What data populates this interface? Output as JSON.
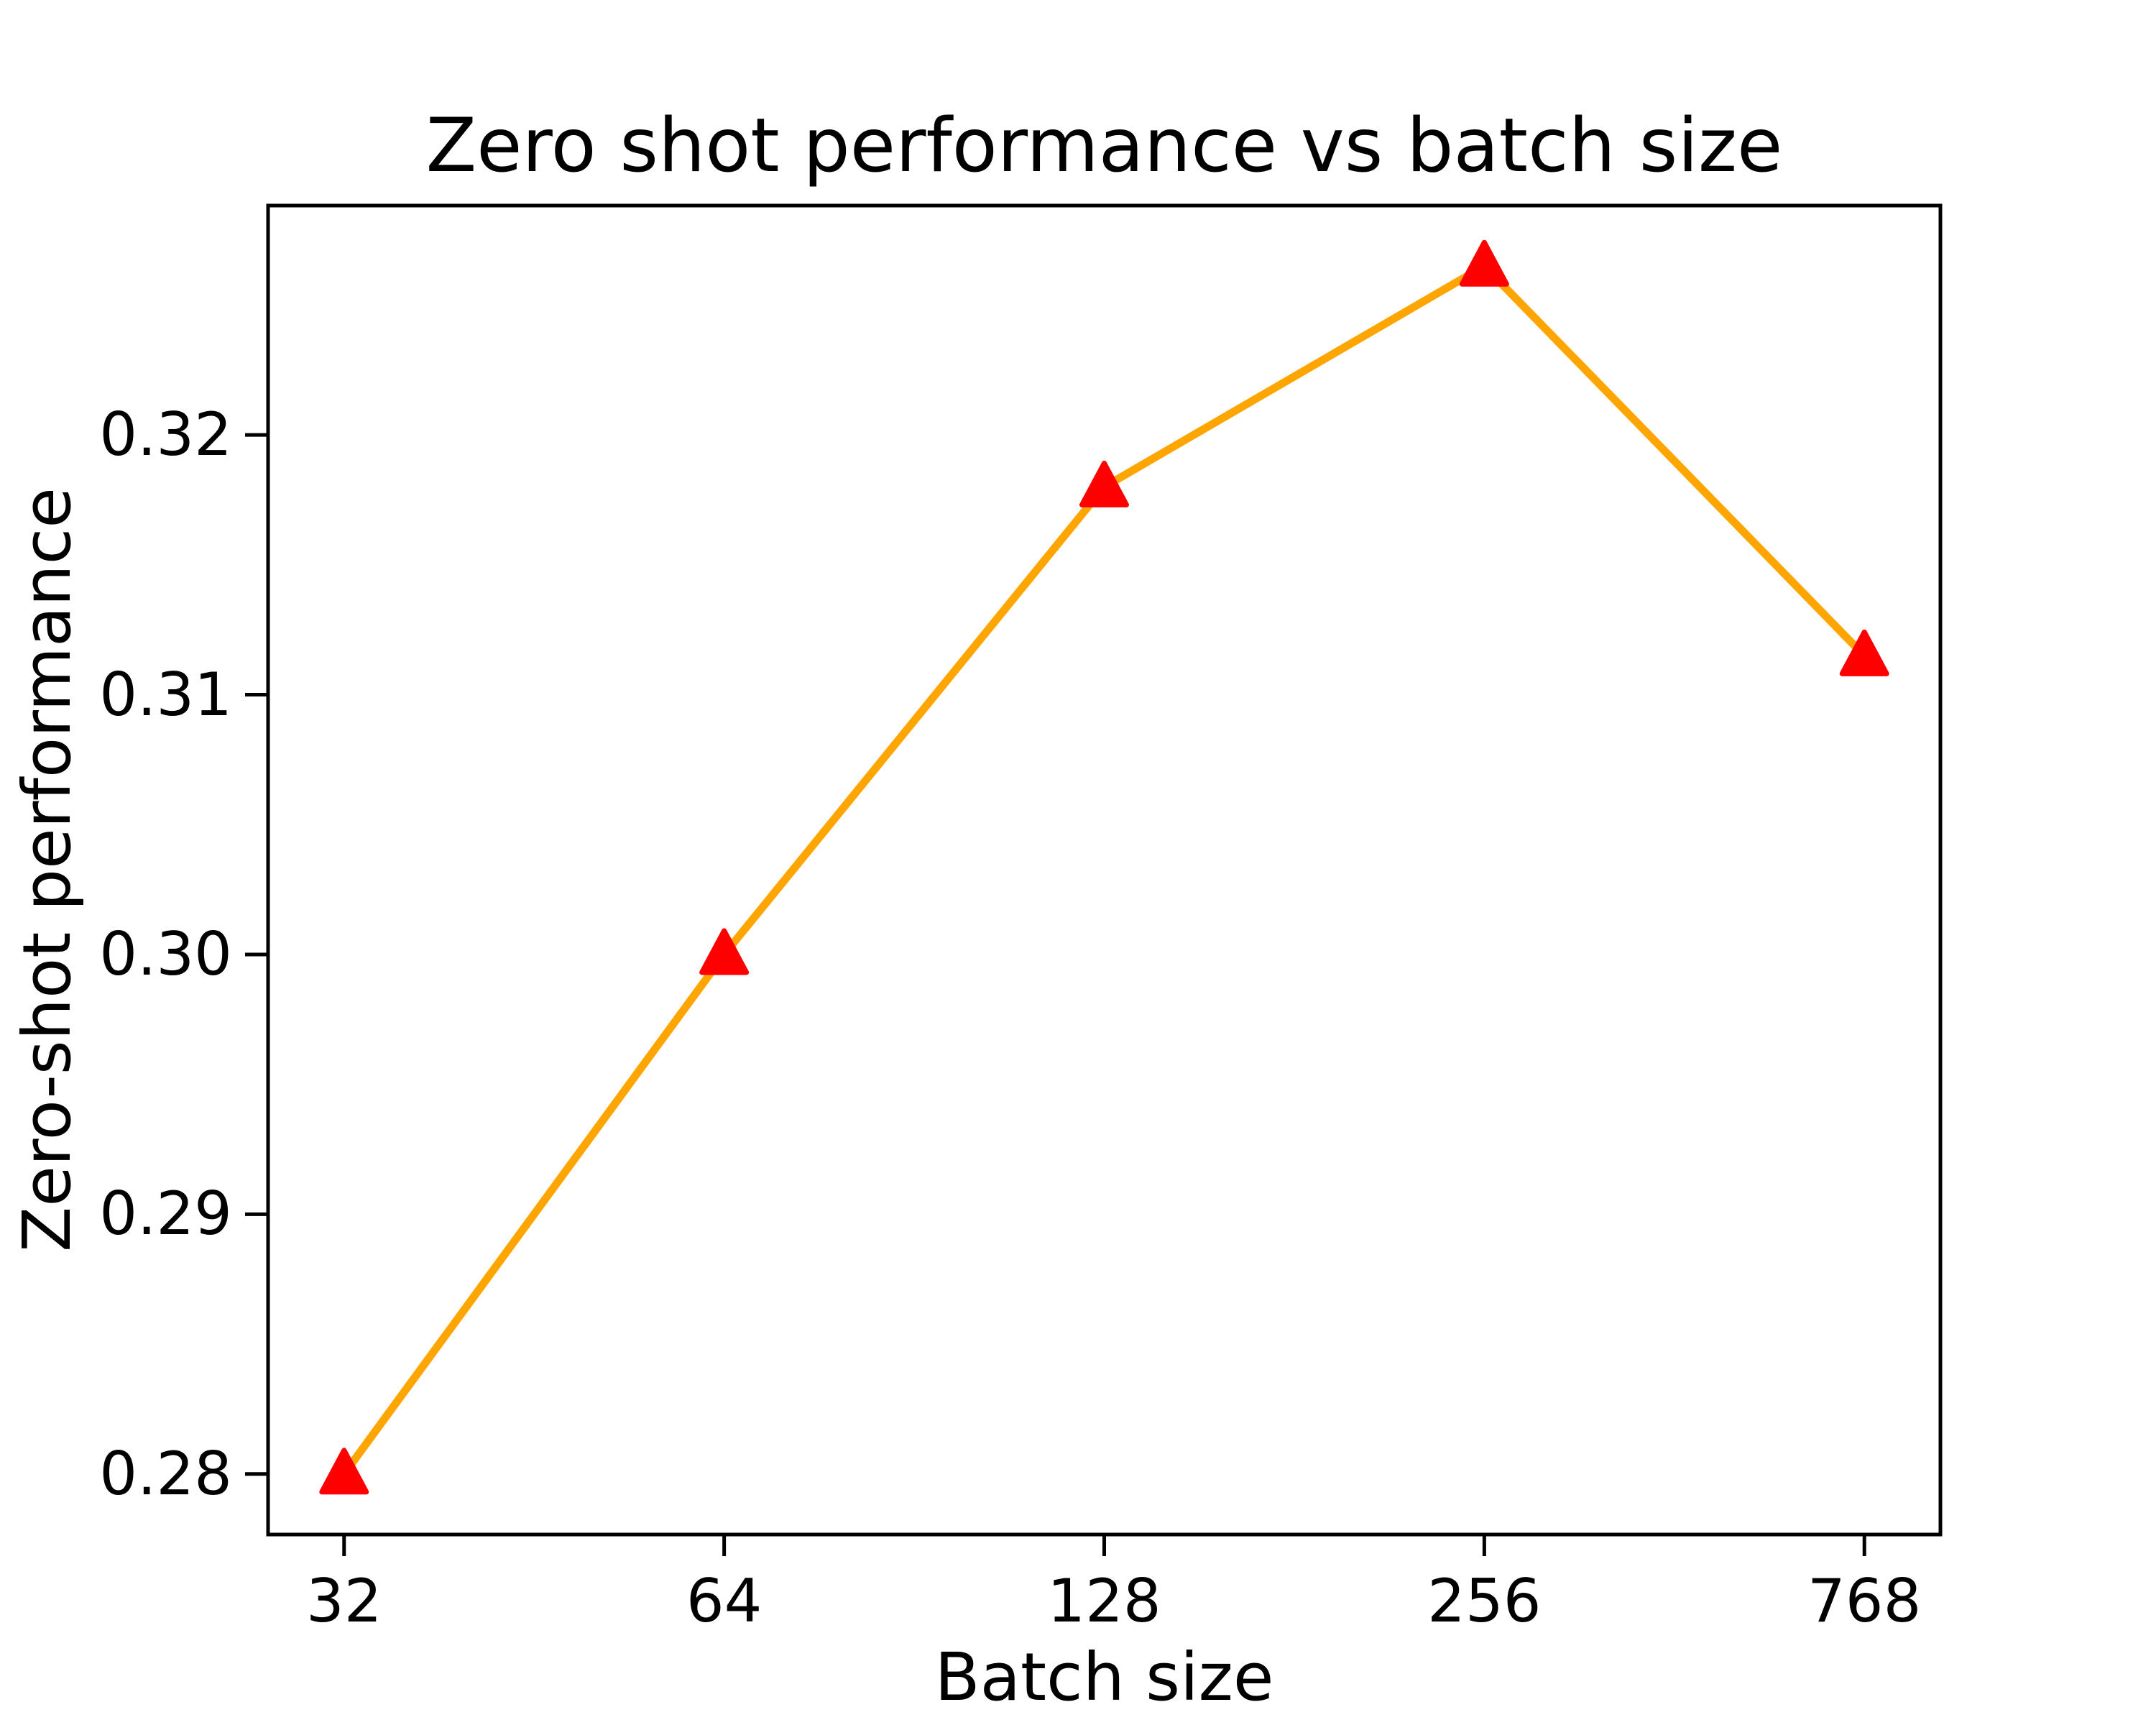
{
  "chart_data": {
    "type": "line",
    "title": "Zero shot performance vs batch size",
    "xlabel": "Batch size",
    "ylabel": "Zero-shot performance",
    "categories": [
      "32",
      "64",
      "128",
      "256",
      "768"
    ],
    "values": [
      0.28,
      0.3,
      0.318,
      0.3265,
      0.3115
    ],
    "series_name": "Zero-shot performance vs batch size",
    "y_tick_labels": [
      "0.28",
      "0.29",
      "0.30",
      "0.31",
      "0.32"
    ],
    "y_ticks": [
      0.28,
      0.29,
      0.3,
      0.31,
      0.32
    ],
    "xlim": [
      -0.2,
      4.2
    ],
    "ylim": [
      0.27767,
      0.32883
    ],
    "grid": false,
    "legend": false,
    "line_color": "#FFA500",
    "marker_color": "#FF0000",
    "marker": "triangle-up",
    "axis_color": "#000000",
    "background_color": "#FFFFFF"
  }
}
